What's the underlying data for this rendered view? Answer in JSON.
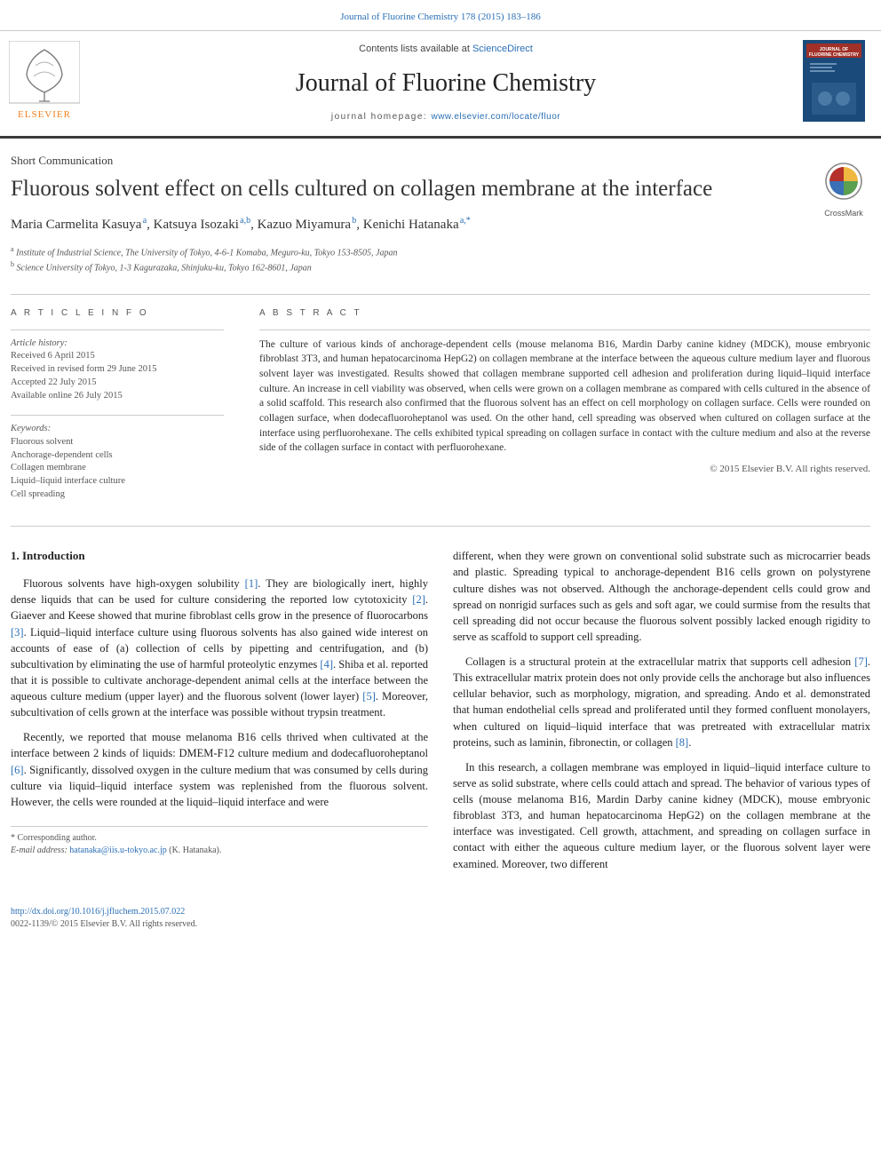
{
  "journal": {
    "citation": "Journal of Fluorine Chemistry 178 (2015) 183–186",
    "contents_prefix": "Contents lists available at ",
    "contents_link": "ScienceDirect",
    "name": "Journal of Fluorine Chemistry",
    "homepage_label": "journal homepage: ",
    "homepage_url": "www.elsevier.com/locate/fluor",
    "cover_title": "FLUORINE CHEMISTRY"
  },
  "colors": {
    "link": "#2a6fb5",
    "rule_dark": "#3a3a3a",
    "text": "#333333",
    "muted": "#555555",
    "elsevier_orange": "#f58220",
    "cover_blue": "#1a4a7a",
    "cover_red": "#a03028",
    "crossmark_red": "#b5302a",
    "crossmark_yellow": "#f0b840",
    "crossmark_blue": "#3a70b5",
    "crossmark_green": "#5aa050"
  },
  "article": {
    "type": "Short Communication",
    "title": "Fluorous solvent effect on cells cultured on collagen membrane at the interface",
    "crossmark": "CrossMark",
    "authors_html": "Maria Carmelita Kasuya|a|, Katsuya Isozaki|a,b|, Kazuo Miyamura|b|, Kenichi Hatanaka|a,*|",
    "authors": [
      {
        "name": "Maria Carmelita Kasuya",
        "sup": "a"
      },
      {
        "name": "Katsuya Isozaki",
        "sup": "a,b"
      },
      {
        "name": "Kazuo Miyamura",
        "sup": "b"
      },
      {
        "name": "Kenichi Hatanaka",
        "sup": "a,*"
      }
    ],
    "affiliations": [
      {
        "sup": "a",
        "text": "Institute of Industrial Science, The University of Tokyo, 4-6-1 Komaba, Meguro-ku, Tokyo 153-8505, Japan"
      },
      {
        "sup": "b",
        "text": "Science University of Tokyo, 1-3 Kagurazaka, Shinjuku-ku, Tokyo 162-8601, Japan"
      }
    ]
  },
  "info": {
    "header": "A R T I C L E  I N F O",
    "history_label": "Article history:",
    "history": [
      "Received 6 April 2015",
      "Received in revised form 29 June 2015",
      "Accepted 22 July 2015",
      "Available online 26 July 2015"
    ],
    "keywords_label": "Keywords:",
    "keywords": [
      "Fluorous solvent",
      "Anchorage-dependent cells",
      "Collagen membrane",
      "Liquid–liquid interface culture",
      "Cell spreading"
    ]
  },
  "abstract": {
    "header": "A B S T R A C T",
    "text": "The culture of various kinds of anchorage-dependent cells (mouse melanoma B16, Mardin Darby canine kidney (MDCK), mouse embryonic fibroblast 3T3, and human hepatocarcinoma HepG2) on collagen membrane at the interface between the aqueous culture medium layer and fluorous solvent layer was investigated. Results showed that collagen membrane supported cell adhesion and proliferation during liquid–liquid interface culture. An increase in cell viability was observed, when cells were grown on a collagen membrane as compared with cells cultured in the absence of a solid scaffold. This research also confirmed that the fluorous solvent has an effect on cell morphology on collagen surface. Cells were rounded on collagen surface, when dodecafluoroheptanol was used. On the other hand, cell spreading was observed when cultured on collagen surface at the interface using perfluorohexane. The cells exhibited typical spreading on collagen surface in contact with the culture medium and also at the reverse side of the collagen surface in contact with perfluorohexane.",
    "copyright": "© 2015 Elsevier B.V. All rights reserved."
  },
  "body": {
    "section_heading": "1. Introduction",
    "p1": "Fluorous solvents have high-oxygen solubility [1]. They are biologically inert, highly dense liquids that can be used for culture considering the reported low cytotoxicity [2]. Giaever and Keese showed that murine fibroblast cells grow in the presence of fluorocarbons [3]. Liquid–liquid interface culture using fluorous solvents has also gained wide interest on accounts of ease of (a) collection of cells by pipetting and centrifugation, and (b) subcultivation by eliminating the use of harmful proteolytic enzymes [4]. Shiba et al. reported that it is possible to cultivate anchorage-dependent animal cells at the interface between the aqueous culture medium (upper layer) and the fluorous solvent (lower layer) [5]. Moreover, subcultivation of cells grown at the interface was possible without trypsin treatment.",
    "p2": "Recently, we reported that mouse melanoma B16 cells thrived when cultivated at the interface between 2 kinds of liquids: DMEM-F12 culture medium and dodecafluoroheptanol [6]. Significantly, dissolved oxygen in the culture medium that was consumed by cells during culture via liquid–liquid interface system was replenished from the fluorous solvent. However, the cells were rounded at the liquid–liquid interface and were",
    "p3": "different, when they were grown on conventional solid substrate such as microcarrier beads and plastic. Spreading typical to anchorage-dependent B16 cells grown on polystyrene culture dishes was not observed. Although the anchorage-dependent cells could grow and spread on nonrigid surfaces such as gels and soft agar, we could surmise from the results that cell spreading did not occur because the fluorous solvent possibly lacked enough rigidity to serve as scaffold to support cell spreading.",
    "p4": "Collagen is a structural protein at the extracellular matrix that supports cell adhesion [7]. This extracellular matrix protein does not only provide cells the anchorage but also influences cellular behavior, such as morphology, migration, and spreading. Ando et al. demonstrated that human endothelial cells spread and proliferated until they formed confluent monolayers, when cultured on liquid–liquid interface that was pretreated with extracellular matrix proteins, such as laminin, fibronectin, or collagen [8].",
    "p5": "In this research, a collagen membrane was employed in liquid–liquid interface culture to serve as solid substrate, where cells could attach and spread. The behavior of various types of cells (mouse melanoma B16, Mardin Darby canine kidney (MDCK), mouse embryonic fibroblast 3T3, and human hepatocarcinoma HepG2) on the collagen membrane at the interface was investigated. Cell growth, attachment, and spreading on collagen surface in contact with either the aqueous culture medium layer, or the fluorous solvent layer were examined. Moreover, two different"
  },
  "footnote": {
    "corresponding": "* Corresponding author.",
    "email_label": "E-mail address: ",
    "email": "hatanaka@iis.u-tokyo.ac.jp",
    "email_suffix": " (K. Hatanaka)."
  },
  "doi": {
    "url": "http://dx.doi.org/10.1016/j.jfluchem.2015.07.022",
    "issn_line": "0022-1139/© 2015 Elsevier B.V. All rights reserved."
  },
  "refs": [
    "[1]",
    "[2]",
    "[3]",
    "[4]",
    "[5]",
    "[6]",
    "[7]",
    "[8]"
  ]
}
